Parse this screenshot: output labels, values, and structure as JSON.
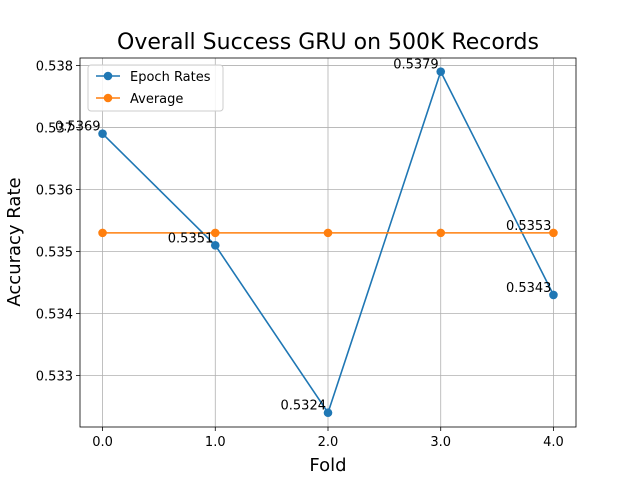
{
  "chart_data": {
    "type": "line",
    "title": "Overall Success GRU on 500K Records",
    "xlabel": "Fold",
    "ylabel": "Accuracy Rate",
    "x": [
      0.0,
      1.0,
      2.0,
      3.0,
      4.0
    ],
    "x_tick_labels": [
      "0.0",
      "1.0",
      "2.0",
      "3.0",
      "4.0"
    ],
    "y_ticks": [
      0.533,
      0.534,
      0.535,
      0.536,
      0.537,
      0.538
    ],
    "y_tick_labels": [
      "0.533",
      "0.534",
      "0.535",
      "0.536",
      "0.537",
      "0.538"
    ],
    "xlim": [
      -0.2,
      4.2
    ],
    "ylim": [
      0.53217,
      0.53812
    ],
    "grid": true,
    "legend_position": "top-left",
    "series": [
      {
        "name": "Epoch Rates",
        "color": "#1f77b4",
        "values": [
          0.5369,
          0.5351,
          0.5324,
          0.5379,
          0.5343
        ],
        "labels": [
          "0.5369",
          "0.5351",
          "0.5324",
          "0.5379",
          "0.5343"
        ]
      },
      {
        "name": "Average",
        "color": "#ff7f0e",
        "values": [
          0.5353,
          0.5353,
          0.5353,
          0.5353,
          0.5353
        ],
        "labels": [
          "",
          "",
          "",
          "",
          "0.5353"
        ]
      }
    ]
  }
}
